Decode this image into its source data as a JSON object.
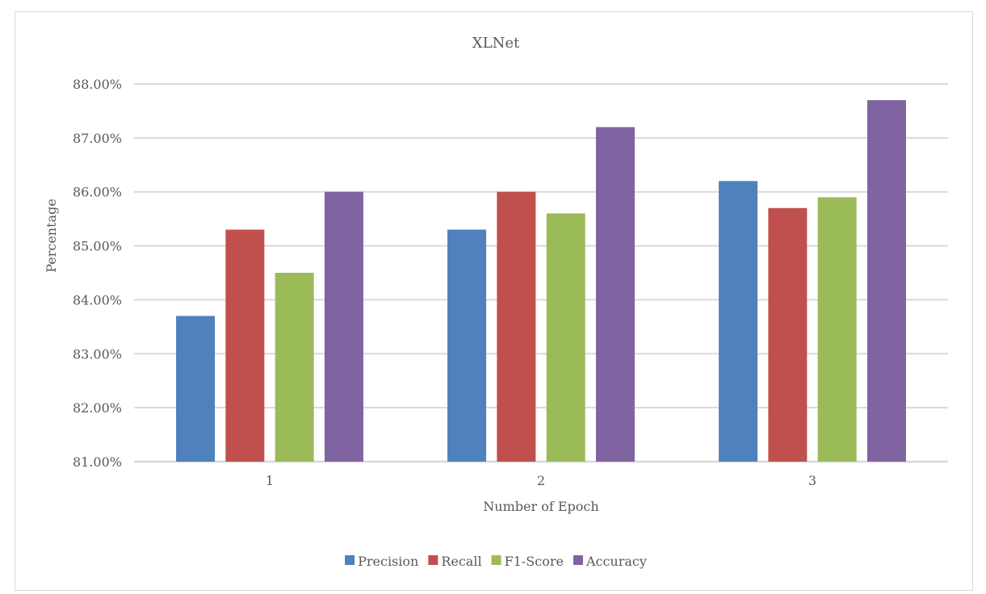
{
  "chart_data": {
    "type": "bar",
    "title": "XLNet",
    "xlabel": "Number of Epoch",
    "ylabel": "Percentage",
    "categories": [
      "1",
      "2",
      "3"
    ],
    "ylim": [
      81,
      88
    ],
    "yticks": [
      {
        "value": 88,
        "label": "88.00%"
      },
      {
        "value": 87,
        "label": "87.00%"
      },
      {
        "value": 86,
        "label": "86.00%"
      },
      {
        "value": 85,
        "label": "85.00%"
      },
      {
        "value": 84,
        "label": "84.00%"
      },
      {
        "value": 83,
        "label": "83.00%"
      },
      {
        "value": 82,
        "label": "82.00%"
      },
      {
        "value": 81,
        "label": "81.00%"
      }
    ],
    "grid": true,
    "legend_position": "bottom",
    "series": [
      {
        "name": "Precision",
        "color": "#4f81bd",
        "values": [
          83.7,
          85.3,
          86.2
        ]
      },
      {
        "name": "Recall",
        "color": "#c0504d",
        "values": [
          85.3,
          86.0,
          85.7
        ]
      },
      {
        "name": "F1-Score",
        "color": "#9bbb59",
        "values": [
          84.5,
          85.6,
          85.9
        ]
      },
      {
        "name": "Accuracy",
        "color": "#8064a2",
        "values": [
          86.0,
          87.2,
          87.7
        ]
      }
    ]
  }
}
